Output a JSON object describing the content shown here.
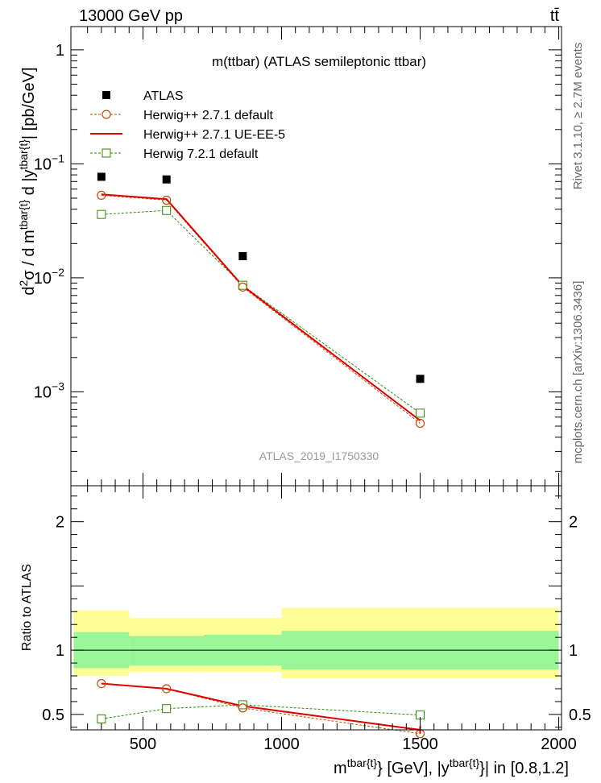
{
  "header": {
    "left": "13000 GeV pp",
    "right": "tt̄"
  },
  "side_text": {
    "top": "Rivet 3.1.10, ≥ 2.7M events",
    "bottom": "mcplots.cern.ch [arXiv:1306.3436]"
  },
  "chart_data": [
    {
      "type": "scatter",
      "title": "m(ttbar) (ATLAS semileptonic ttbar)",
      "watermark": "ATLAS_2019_I1750330",
      "ylabel": "d²σ / d m^{tbar{t}} d |y^{tbar{t}}| [pb/GeV]",
      "ylabel_parts": {
        "a": "d",
        "a_sup": "2",
        "b": "σ / d m",
        "b_sup": "tbar{t}",
        "c": " d |y",
        "c_sup": "tbar{t}",
        "d": "| [pb/GeV]"
      },
      "yscale": "log",
      "xlim": [
        240,
        2010
      ],
      "ylim": [
        0.00015,
        1.6
      ],
      "ytick_labels": [
        {
          "value": 1,
          "base": "1",
          "exp": ""
        },
        {
          "value": 0.1,
          "base": "10",
          "exp": "−1"
        },
        {
          "value": 0.01,
          "base": "10",
          "exp": "−2"
        },
        {
          "value": 0.001,
          "base": "10",
          "exp": "−3"
        }
      ],
      "legend_position": "top-left",
      "x": [
        350,
        585,
        860,
        1500
      ],
      "series": [
        {
          "name": "ATLAS",
          "values": [
            0.077,
            0.073,
            0.0155,
            0.0013
          ],
          "color": "#000000",
          "style": "marker-square-filled"
        },
        {
          "name": "Herwig++ 2.7.1 default",
          "values": [
            0.053,
            0.048,
            0.0083,
            0.00053
          ],
          "color": "#c04c00",
          "style": "dashed-circle-open"
        },
        {
          "name": "Herwig++ 2.7.1 UE-EE-5",
          "values": [
            0.054,
            0.049,
            0.0085,
            0.00056
          ],
          "color": "#e00000",
          "style": "solid-line"
        },
        {
          "name": "Herwig 7.2.1 default",
          "values": [
            0.036,
            0.039,
            0.0086,
            0.00065
          ],
          "color": "#2d8a00",
          "style": "dashed-square-open"
        }
      ]
    },
    {
      "type": "scatter",
      "ylabel": "Ratio to ATLAS",
      "xlabel": "m^{tbar{t}} [GeV], |y^{tbar{t}}| in [0.8,1.2]",
      "xlabel_parts": {
        "a": "m",
        "a_sup": "tbar{t}",
        "b": "} [GeV], |y",
        "b_sup": "tbar{t}",
        "c": "}| in [0.8,1.2]"
      },
      "xlim": [
        240,
        2010
      ],
      "ylim": [
        0.38,
        2.28
      ],
      "xticks": [
        500,
        1000,
        1500,
        2000
      ],
      "xtick_labels": [
        "500",
        "1000",
        "1500",
        "2000"
      ],
      "yticks": [
        0.5,
        1,
        2
      ],
      "ytick_labels": [
        "0.5",
        "1",
        "2"
      ],
      "bands": [
        {
          "x0": 250,
          "x1": 450,
          "inner": [
            0.86,
            1.14
          ],
          "outer": [
            0.8,
            1.31
          ]
        },
        {
          "x0": 450,
          "x1": 720,
          "inner": [
            0.88,
            1.11
          ],
          "outer": [
            0.83,
            1.25
          ]
        },
        {
          "x0": 720,
          "x1": 1000,
          "inner": [
            0.88,
            1.12
          ],
          "outer": [
            0.83,
            1.25
          ]
        },
        {
          "x0": 1000,
          "x1": 2000,
          "inner": [
            0.85,
            1.15
          ],
          "outer": [
            0.78,
            1.33
          ]
        }
      ],
      "x": [
        350,
        585,
        860,
        1500
      ],
      "series": [
        {
          "name": "Herwig++ 2.7.1 default",
          "values": [
            0.74,
            0.7,
            0.55,
            0.35
          ],
          "color": "#c04c00"
        },
        {
          "name": "Herwig++ 2.7.1 UE-EE-5",
          "values": [
            0.74,
            0.7,
            0.565,
            0.38
          ],
          "color": "#e00000"
        },
        {
          "name": "Herwig 7.2.1 default",
          "values": [
            0.465,
            0.545,
            0.575,
            0.495
          ],
          "color": "#2d8a00"
        }
      ]
    }
  ]
}
